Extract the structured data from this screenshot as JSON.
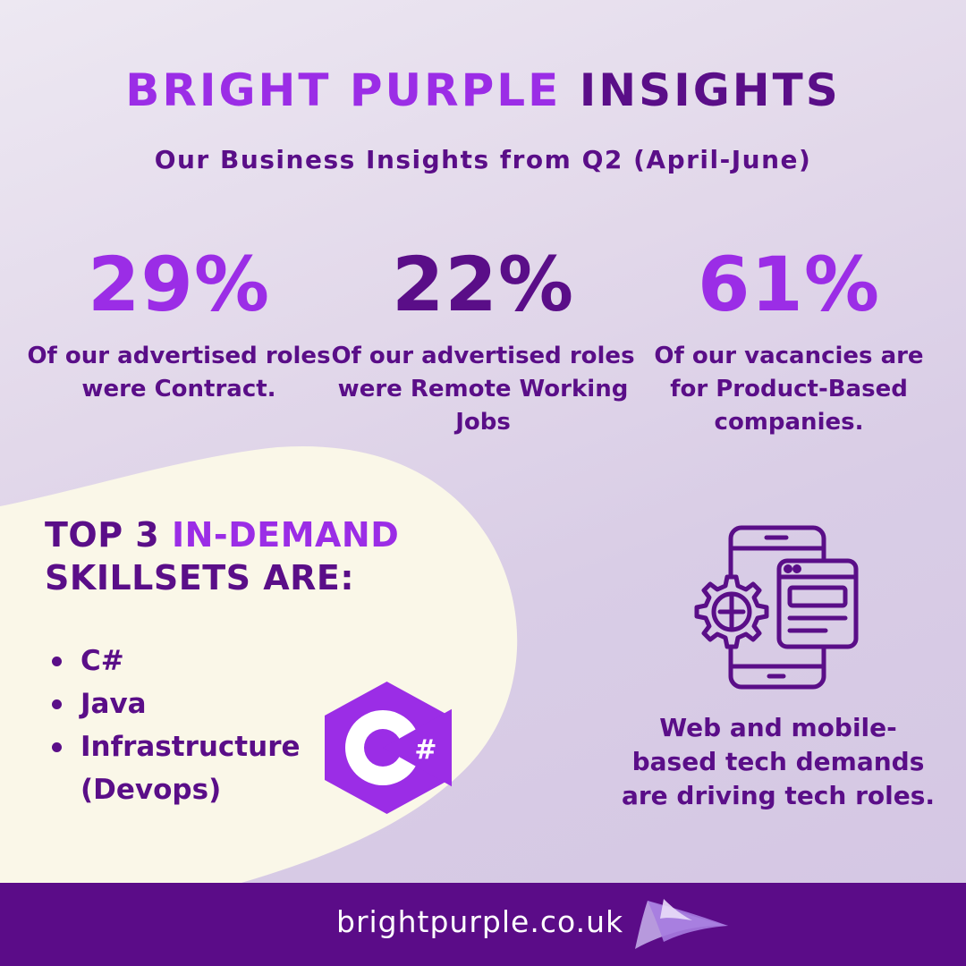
{
  "header": {
    "title_part1": "BRIGHT PURPLE",
    "title_part2": "INSIGHTS",
    "subtitle": "Our Business Insights from Q2 (April-June)"
  },
  "stats": [
    {
      "value": "29%",
      "description": "Of our advertised roles were Contract.",
      "color": "#9b2de6"
    },
    {
      "value": "22%",
      "description": "Of our advertised roles were Remote Working Jobs",
      "color": "#5a0e88"
    },
    {
      "value": "61%",
      "description": "Of our vacancies are for Product-Based companies.",
      "color": "#9b2de6"
    }
  ],
  "skills": {
    "heading_part1": "TOP 3",
    "heading_highlight": "IN-DEMAND",
    "heading_part2": "SKILLSETS ARE:",
    "items": [
      "C#",
      "Java",
      "Infrastructure (Devops)"
    ],
    "logo_icon": "csharp-logo-icon",
    "logo_text": "#"
  },
  "tech": {
    "icon": "mobile-web-gear-icon",
    "text": "Web and mobile-based tech demands are driving tech roles."
  },
  "footer": {
    "url": "brightpurple.co.uk",
    "logo_icon": "bright-purple-logo-icon"
  },
  "colors": {
    "purple_light": "#9b2de6",
    "purple_dark": "#5a0e88",
    "footer_bg": "#5b0c88",
    "cream": "#faf7e8"
  }
}
